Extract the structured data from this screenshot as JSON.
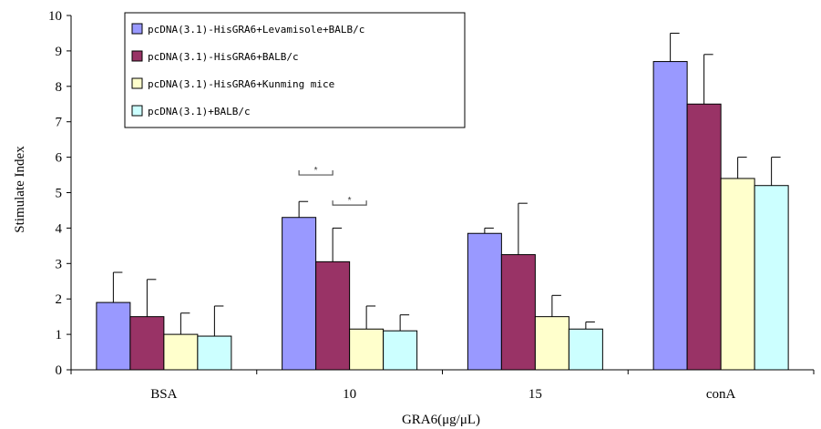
{
  "chart_data": {
    "type": "bar",
    "title": "",
    "xlabel": "GRA6(μg/μL)",
    "ylabel": "Stimulate Index",
    "ylim": [
      0,
      10
    ],
    "yticks": [
      "0",
      "1",
      "2",
      "3",
      "4",
      "5",
      "6",
      "7",
      "8",
      "9",
      "10"
    ],
    "categories": [
      "BSA",
      "10",
      "15",
      "conA"
    ],
    "legend_position": "top-left",
    "grid": false,
    "series": [
      {
        "name": "pcDNA(3.1)-HisGRA6+Levamisole+BALB/c",
        "color": "#9999ff",
        "values": [
          1.9,
          4.3,
          3.85,
          8.7
        ],
        "errors": [
          0.85,
          0.45,
          0.15,
          0.8
        ]
      },
      {
        "name": "pcDNA(3.1)-HisGRA6+BALB/c",
        "color": "#993366",
        "values": [
          1.5,
          3.05,
          3.25,
          7.5
        ],
        "errors": [
          1.05,
          0.95,
          1.45,
          1.4
        ]
      },
      {
        "name": "pcDNA(3.1)-HisGRA6+Kunming mice",
        "color": "#ffffcc",
        "values": [
          1.0,
          1.15,
          1.5,
          5.4
        ],
        "errors": [
          0.6,
          0.65,
          0.6,
          0.6
        ]
      },
      {
        "name": "pcDNA(3.1)+BALB/c",
        "color": "#ccffff",
        "values": [
          0.95,
          1.1,
          1.15,
          5.2
        ],
        "errors": [
          0.85,
          0.45,
          0.2,
          0.8
        ]
      }
    ],
    "significance": [
      {
        "category": "10",
        "from_series": 0,
        "to_series": 1,
        "label": "*",
        "y": 5.5
      },
      {
        "category": "10",
        "from_series": 1,
        "to_series": 2,
        "label": "*",
        "y": 4.65
      }
    ]
  }
}
